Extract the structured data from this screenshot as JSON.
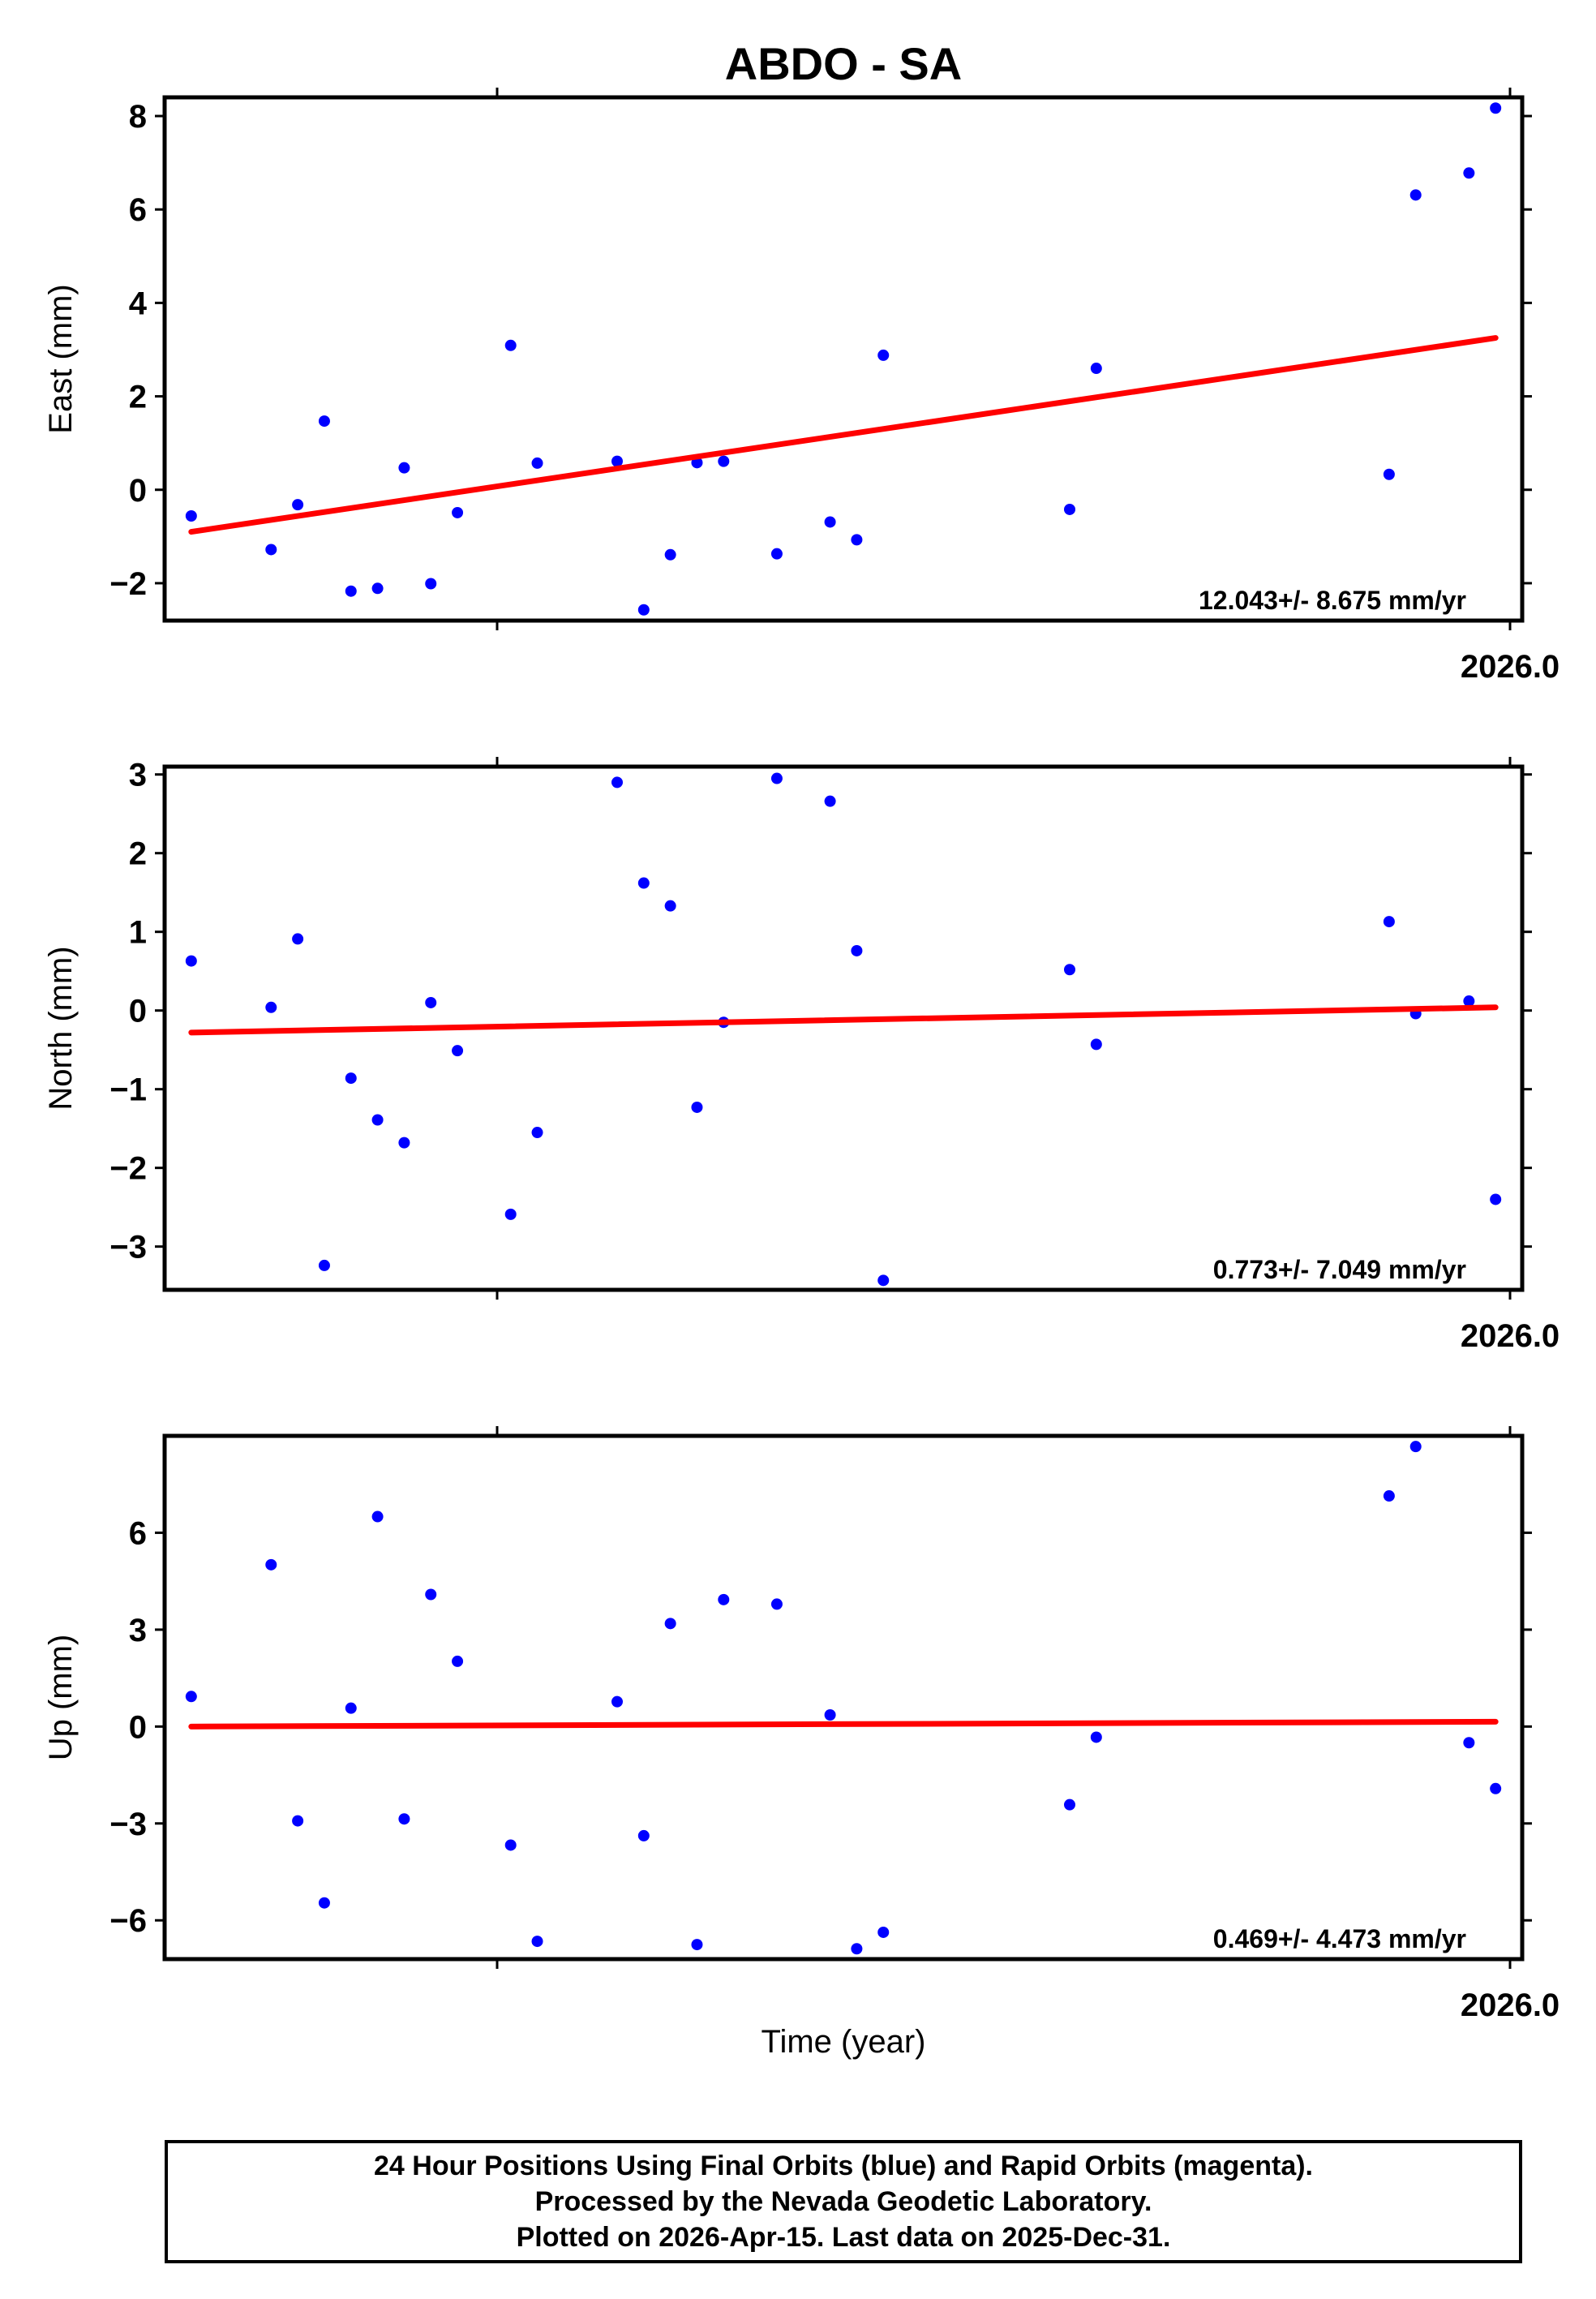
{
  "page": {
    "title": "ABDO - SA",
    "xlabel": "Time (year)",
    "footer": [
      "24 Hour Positions Using Final Orbits (blue) and Rapid Orbits (magenta).",
      "Processed by the Nevada Geodetic Laboratory.",
      "Plotted on 2026-Apr-15. Last data on 2025-Dec-31."
    ]
  },
  "colors": {
    "final_orbits": "#0000ff",
    "fit_line": "#ff0000",
    "axis": "#000000",
    "background": "#ffffff"
  },
  "chart_data": [
    {
      "type": "scatter",
      "ylabel": "East (mm)",
      "xlim": [
        2025.01,
        2026.03
      ],
      "ylim": [
        -2.8,
        8.4
      ],
      "yticks": [
        -2,
        0,
        2,
        4,
        6,
        8
      ],
      "ytick_labels": [
        "−2",
        "0",
        "2",
        "4",
        "6",
        "8"
      ],
      "xtick_label": "2026.0",
      "rate_text": "12.043+/- 8.675 mm/yr",
      "grid": false,
      "series": [
        {
          "x": [
            2025.03,
            2025.09,
            2025.11,
            2025.13,
            2025.15,
            2025.17,
            2025.19,
            2025.21,
            2025.23,
            2025.27,
            2025.29,
            2025.35,
            2025.37,
            2025.39,
            2025.41,
            2025.43,
            2025.47,
            2025.51,
            2025.53,
            2025.55,
            2025.69,
            2025.71,
            2025.93,
            2025.95,
            2025.99,
            2026.01
          ],
          "y": [
            -0.56,
            -1.28,
            -0.32,
            1.47,
            -2.17,
            -2.11,
            0.47,
            -2.01,
            -0.49,
            3.09,
            0.57,
            0.61,
            -2.57,
            -1.39,
            0.58,
            0.61,
            -1.37,
            -0.69,
            -1.07,
            2.88,
            -0.42,
            2.6,
            0.33,
            6.31,
            6.78,
            8.17
          ]
        }
      ],
      "fit": {
        "x": [
          2025.03,
          2026.01
        ],
        "y": [
          -0.9,
          3.25
        ]
      }
    },
    {
      "type": "scatter",
      "ylabel": "North (mm)",
      "xlim": [
        2025.01,
        2026.03
      ],
      "ylim": [
        -3.55,
        3.1
      ],
      "yticks": [
        -3,
        -2,
        -1,
        0,
        1,
        2,
        3
      ],
      "ytick_labels": [
        "−3",
        "−2",
        "−1",
        "0",
        "1",
        "2",
        "3"
      ],
      "xtick_label": "2026.0",
      "rate_text": "0.773+/- 7.049 mm/yr",
      "grid": false,
      "series": [
        {
          "x": [
            2025.03,
            2025.09,
            2025.11,
            2025.13,
            2025.15,
            2025.17,
            2025.19,
            2025.21,
            2025.23,
            2025.27,
            2025.29,
            2025.35,
            2025.37,
            2025.39,
            2025.41,
            2025.43,
            2025.47,
            2025.51,
            2025.53,
            2025.55,
            2025.69,
            2025.71,
            2025.93,
            2025.95,
            2025.99,
            2026.01
          ],
          "y": [
            0.63,
            0.04,
            0.91,
            -3.24,
            -0.86,
            -1.39,
            -1.68,
            0.1,
            -0.51,
            -2.59,
            -1.55,
            2.9,
            1.62,
            1.33,
            -1.23,
            -0.15,
            2.95,
            2.66,
            0.76,
            -3.43,
            0.52,
            -0.43,
            1.13,
            -0.04,
            0.12,
            -2.4
          ]
        }
      ],
      "fit": {
        "x": [
          2025.03,
          2026.01
        ],
        "y": [
          -0.28,
          0.04
        ]
      }
    },
    {
      "type": "scatter",
      "ylabel": "Up (mm)",
      "xlim": [
        2025.01,
        2026.03
      ],
      "ylim": [
        -7.2,
        9.0
      ],
      "yticks": [
        -6,
        -3,
        0,
        3,
        6
      ],
      "ytick_labels": [
        "−6",
        "−3",
        "0",
        "3",
        "6"
      ],
      "xtick_label": "2026.0",
      "rate_text": "0.469+/- 4.473 mm/yr",
      "grid": false,
      "series": [
        {
          "x": [
            2025.03,
            2025.09,
            2025.11,
            2025.13,
            2025.15,
            2025.17,
            2025.19,
            2025.21,
            2025.23,
            2025.27,
            2025.29,
            2025.35,
            2025.37,
            2025.39,
            2025.41,
            2025.43,
            2025.47,
            2025.51,
            2025.53,
            2025.55,
            2025.69,
            2025.71,
            2025.93,
            2025.95,
            2025.99,
            2026.01
          ],
          "y": [
            0.93,
            5.01,
            -2.92,
            -5.46,
            0.57,
            6.5,
            -2.86,
            4.09,
            2.02,
            -3.67,
            -6.65,
            0.77,
            -3.38,
            3.19,
            -6.75,
            3.93,
            3.79,
            0.36,
            -6.88,
            -6.37,
            -2.42,
            -0.33,
            7.14,
            8.67,
            -0.5,
            -1.92
          ]
        }
      ],
      "fit": {
        "x": [
          2025.03,
          2026.01
        ],
        "y": [
          0.0,
          0.15
        ]
      }
    }
  ]
}
